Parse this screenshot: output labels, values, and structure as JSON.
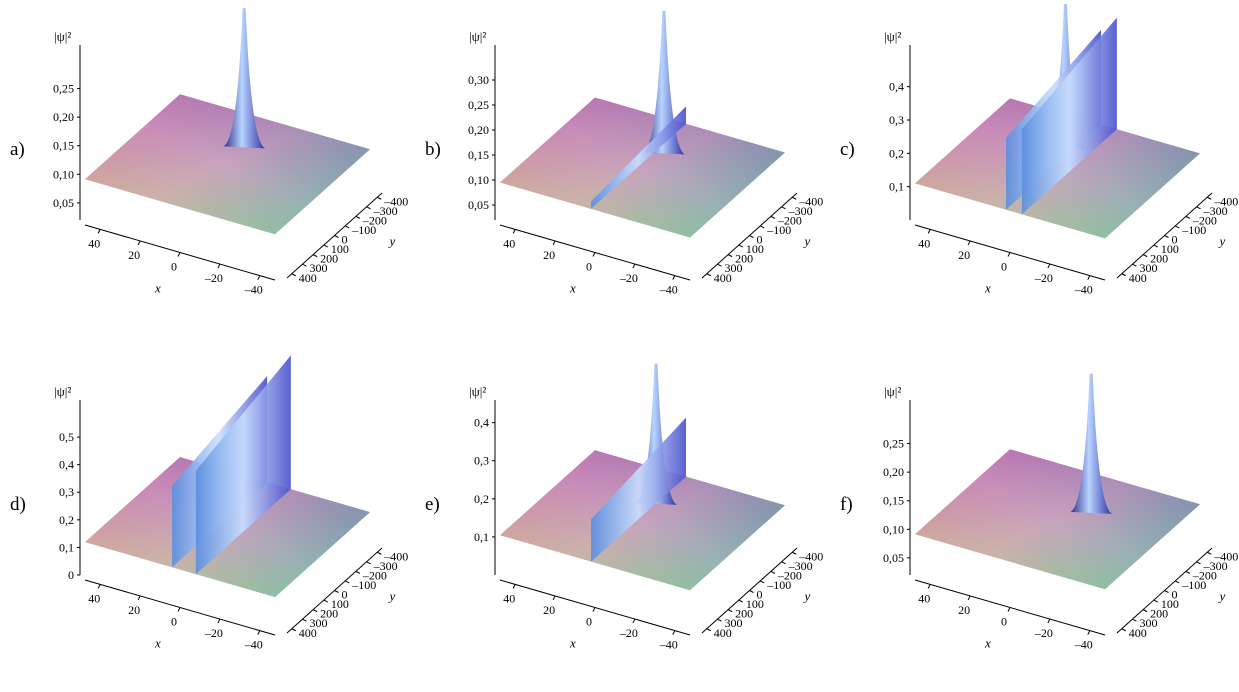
{
  "chart_data": [
    {
      "panel": "a)",
      "type": "surface3d",
      "zlabel": "|ψ|²",
      "xlabel": "x",
      "ylabel": "y",
      "x_ticks": [
        "40",
        "20",
        "0",
        "–20",
        "–40"
      ],
      "y_ticks": [
        "–400",
        "–300",
        "–200",
        "–100",
        "0",
        "100",
        "200",
        "300",
        "400"
      ],
      "z_ticks": [
        "0,05",
        "0,10",
        "0,15",
        "0,20",
        "0,25"
      ],
      "xlim": [
        48,
        -48
      ],
      "ylim": [
        -400,
        400
      ],
      "zlim": [
        0.02,
        0.3
      ],
      "baseline": 0.065,
      "peaks": [
        {
          "x": 3,
          "y": -190,
          "height": 0.32,
          "shape": "lump"
        }
      ]
    },
    {
      "panel": "b)",
      "type": "surface3d",
      "zlabel": "|ψ|²",
      "xlabel": "x",
      "ylabel": "y",
      "x_ticks": [
        "40",
        "20",
        "0",
        "–20",
        "–40"
      ],
      "y_ticks": [
        "–400",
        "–300",
        "–200",
        "–100",
        "0",
        "100",
        "200",
        "300",
        "400"
      ],
      "z_ticks": [
        "0,05",
        "0,10",
        "0,15",
        "0,20",
        "0,25",
        "0,30"
      ],
      "xlim": [
        48,
        -48
      ],
      "ylim": [
        -400,
        400
      ],
      "zlim": [
        0.02,
        0.34
      ],
      "baseline": 0.065,
      "peaks": [
        {
          "x": 0,
          "y": -180,
          "height": 0.36,
          "shape": "lump"
        },
        {
          "x": 2,
          "y": 0,
          "height": 0.1,
          "shape": "line-soliton"
        }
      ]
    },
    {
      "panel": "c)",
      "type": "surface3d",
      "zlabel": "|ψ|²",
      "xlabel": "x",
      "ylabel": "y",
      "x_ticks": [
        "40",
        "20",
        "0",
        "–20",
        "–40"
      ],
      "y_ticks": [
        "–400",
        "–300",
        "–200",
        "–100",
        "0",
        "100",
        "200",
        "300",
        "400"
      ],
      "z_ticks": [
        "0,1",
        "0,2",
        "0,3",
        "0,4"
      ],
      "xlim": [
        48,
        -48
      ],
      "ylim": [
        -400,
        400
      ],
      "zlim": [
        0.0,
        0.48
      ],
      "baseline": 0.065,
      "peaks": [
        {
          "x": 8,
          "y": -200,
          "height": 0.5,
          "shape": "lump"
        },
        {
          "x": 2,
          "y": 0,
          "height": 0.35,
          "shape": "line-soliton"
        },
        {
          "x": -6,
          "y": 0,
          "height": 0.4,
          "shape": "line-soliton"
        }
      ]
    },
    {
      "panel": "d)",
      "type": "surface3d",
      "zlabel": "|ψ|²",
      "xlabel": "x",
      "ylabel": "y",
      "x_ticks": [
        "40",
        "20",
        "0",
        "–20",
        "–40"
      ],
      "y_ticks": [
        "–400",
        "–300",
        "–200",
        "–100",
        "0",
        "100",
        "200",
        "300",
        "400"
      ],
      "z_ticks": [
        "0",
        "0,1",
        "0,2",
        "0,3",
        "0,4",
        "0,5"
      ],
      "xlim": [
        48,
        -48
      ],
      "ylim": [
        -400,
        400
      ],
      "zlim": [
        0.0,
        0.58
      ],
      "baseline": 0.065,
      "peaks": [
        {
          "x": 4,
          "y": 0,
          "height": 0.45,
          "shape": "line-soliton"
        },
        {
          "x": -8,
          "y": 0,
          "height": 0.55,
          "shape": "line-soliton"
        }
      ]
    },
    {
      "panel": "e)",
      "type": "surface3d",
      "zlabel": "|ψ|²",
      "xlabel": "x",
      "ylabel": "y",
      "x_ticks": [
        "40",
        "20",
        "0",
        "–20",
        "–40"
      ],
      "y_ticks": [
        "–400",
        "–300",
        "–200",
        "–100",
        "0",
        "100",
        "200",
        "300",
        "400"
      ],
      "z_ticks": [
        "0,1",
        "0,2",
        "0,3",
        "0,4"
      ],
      "xlim": [
        48,
        -48
      ],
      "ylim": [
        -400,
        400
      ],
      "zlim": [
        0.0,
        0.42
      ],
      "baseline": 0.065,
      "peaks": [
        {
          "x": 4,
          "y": -180,
          "height": 0.45,
          "shape": "lump"
        },
        {
          "x": 2,
          "y": 0,
          "height": 0.22,
          "shape": "line-soliton"
        }
      ]
    },
    {
      "panel": "f)",
      "type": "surface3d",
      "zlabel": "|ψ|²",
      "xlabel": "x",
      "ylabel": "y",
      "x_ticks": [
        "40",
        "20",
        "0",
        "–20",
        "–40"
      ],
      "y_ticks": [
        "–400",
        "–300",
        "–200",
        "–100",
        "0",
        "100",
        "200",
        "300",
        "400"
      ],
      "z_ticks": [
        "0,05",
        "0,10",
        "0,15",
        "0,20",
        "0,25"
      ],
      "xlim": [
        48,
        -48
      ],
      "ylim": [
        -400,
        400
      ],
      "zlim": [
        0.02,
        0.3
      ],
      "baseline": 0.065,
      "peaks": [
        {
          "x": -8,
          "y": -150,
          "height": 0.3,
          "shape": "lump"
        }
      ]
    }
  ]
}
